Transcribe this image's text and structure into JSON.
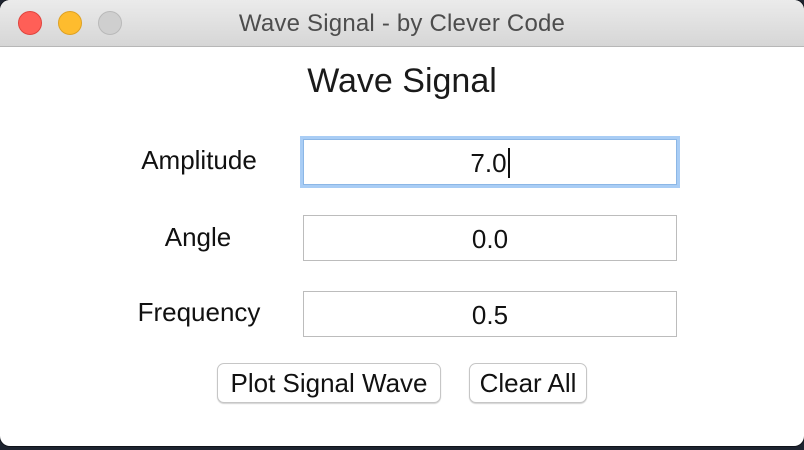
{
  "window": {
    "title": "Wave Signal - by Clever Code"
  },
  "form": {
    "heading": "Wave Signal",
    "fields": [
      {
        "label": "Amplitude",
        "value": "7.0",
        "focused": true
      },
      {
        "label": "Angle",
        "value": "0.0",
        "focused": false
      },
      {
        "label": "Frequency",
        "value": "0.5",
        "focused": false
      }
    ]
  },
  "buttons": {
    "plot_label": "Plot Signal Wave",
    "clear_label": "Clear All"
  },
  "colors": {
    "close": "#ff5f57",
    "minimize": "#febc2e",
    "zoom_disabled": "#cfcfcf",
    "focus_ring": "#a9cdf5"
  },
  "icons": {
    "close": "close-traffic-light-icon",
    "minimize": "minimize-traffic-light-icon",
    "zoom": "zoom-traffic-light-icon"
  }
}
